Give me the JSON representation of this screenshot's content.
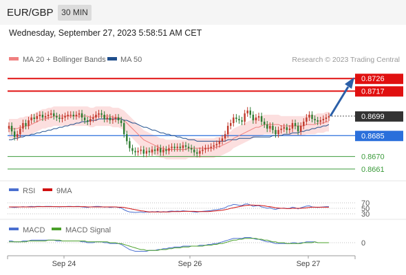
{
  "header": {
    "symbol": "EUR/GBP",
    "timeframe": "30 MIN"
  },
  "datetime": "Wednesday, September 27, 2023 5:58:51 AM CET",
  "legend": {
    "ma20": "MA 20 + Bollinger Bands",
    "ma50": "MA 50",
    "copyright": "Research © 2023 Trading Central",
    "rsi": "RSI",
    "rsi_ma": "9MA",
    "macd": "MACD",
    "macd_signal": "MACD Signal"
  },
  "colors": {
    "ma20": "#f08080",
    "ma50": "#1f4e8c",
    "resistance": "#e01010",
    "pivot": "#2a6fdb",
    "support": "#3a9a3a",
    "current": "#333333",
    "bullish": "#c0392b",
    "bearish": "#2e7d32",
    "rsi": "#4a6fd0",
    "rsi_ma": "#d01010",
    "macd": "#4a6fd0",
    "macd_signal": "#4aa02a"
  },
  "chart_data": [
    {
      "type": "line",
      "title": "",
      "x_labels": [
        "Sep 24",
        "Sep 26",
        "Sep 27"
      ],
      "ylim": [
        0.8655,
        0.8735
      ],
      "price_levels": [
        {
          "value": 0.8726,
          "label": "0.8726",
          "kind": "resistance"
        },
        {
          "value": 0.8717,
          "label": "0.8717",
          "kind": "resistance"
        },
        {
          "value": 0.8699,
          "label": "0.8699",
          "kind": "current"
        },
        {
          "value": 0.8685,
          "label": "0.8685",
          "kind": "pivot"
        },
        {
          "value": 0.867,
          "label": "0.8670",
          "kind": "support"
        },
        {
          "value": 0.8661,
          "label": "0.8661",
          "kind": "support"
        }
      ],
      "close": [
        0.8692,
        0.8688,
        0.8684,
        0.8686,
        0.869,
        0.8694,
        0.8692,
        0.8696,
        0.8698,
        0.8697,
        0.8699,
        0.87,
        0.8698,
        0.8699,
        0.87,
        0.8701,
        0.8699,
        0.8698,
        0.8697,
        0.8698,
        0.8699,
        0.87,
        0.87,
        0.8699,
        0.87,
        0.8701,
        0.8698,
        0.8696,
        0.8695,
        0.8697,
        0.8698,
        0.87,
        0.8701,
        0.87,
        0.8697,
        0.8698,
        0.8696,
        0.8697,
        0.8698,
        0.8696,
        0.8694,
        0.8686,
        0.8681,
        0.8676,
        0.8674,
        0.8673,
        0.8674,
        0.8675,
        0.8672,
        0.8674,
        0.8673,
        0.8675,
        0.8674,
        0.8676,
        0.8673,
        0.8675,
        0.8674,
        0.8676,
        0.8677,
        0.8676,
        0.8677,
        0.8676,
        0.8678,
        0.8677,
        0.8676,
        0.8675,
        0.8673,
        0.8672,
        0.8674,
        0.8675,
        0.8676,
        0.8676,
        0.8677,
        0.8678,
        0.8679,
        0.8681,
        0.8683,
        0.8686,
        0.8692,
        0.8694,
        0.8698,
        0.8697,
        0.8696,
        0.8695,
        0.8701,
        0.8703,
        0.87,
        0.8696,
        0.8698,
        0.8699,
        0.8695,
        0.8693,
        0.869,
        0.8692,
        0.8689,
        0.8686,
        0.8689,
        0.869,
        0.8691,
        0.8689,
        0.869,
        0.8694,
        0.8692,
        0.8688,
        0.8692,
        0.8695,
        0.8698,
        0.87,
        0.8697,
        0.8696,
        0.8695,
        0.8696,
        0.8697,
        0.8698,
        0.8699
      ],
      "ma20": [
        0.869,
        0.869,
        0.869,
        0.869,
        0.8691,
        0.8691,
        0.8692,
        0.8692,
        0.8693,
        0.8694,
        0.8695,
        0.8696,
        0.8697,
        0.8697,
        0.8698,
        0.8698,
        0.8699,
        0.8699,
        0.8699,
        0.8699,
        0.8699,
        0.8699,
        0.8699,
        0.8699,
        0.8699,
        0.8699,
        0.8699,
        0.8699,
        0.8699,
        0.8698,
        0.8698,
        0.8699,
        0.8699,
        0.8699,
        0.8699,
        0.8699,
        0.8699,
        0.8698,
        0.8698,
        0.8698,
        0.8697,
        0.8696,
        0.8694,
        0.8692,
        0.869,
        0.8688,
        0.8686,
        0.8684,
        0.8682,
        0.8681,
        0.868,
        0.8679,
        0.8678,
        0.8677,
        0.8676,
        0.8676,
        0.8675,
        0.8675,
        0.8675,
        0.8675,
        0.8675,
        0.8675,
        0.8675,
        0.8675,
        0.8676,
        0.8676,
        0.8676,
        0.8676,
        0.8676,
        0.8676,
        0.8676,
        0.8676,
        0.8676,
        0.8676,
        0.8677,
        0.8677,
        0.8678,
        0.8679,
        0.868,
        0.8681,
        0.8683,
        0.8684,
        0.8685,
        0.8686,
        0.8687,
        0.8688,
        0.8689,
        0.869,
        0.8691,
        0.8691,
        0.8692,
        0.8693,
        0.8693,
        0.8693,
        0.8693,
        0.8693,
        0.8693,
        0.8692,
        0.8692,
        0.8692,
        0.8692,
        0.8692,
        0.8692,
        0.8692,
        0.8692,
        0.8692,
        0.8693,
        0.8693,
        0.8693,
        0.8693,
        0.8694,
        0.8694,
        0.8694,
        0.8695,
        0.8695
      ],
      "ma50": [
        0.8682,
        0.8682,
        0.8683,
        0.8683,
        0.8684,
        0.8684,
        0.8685,
        0.8685,
        0.8686,
        0.8686,
        0.8687,
        0.8687,
        0.8688,
        0.8688,
        0.8689,
        0.8689,
        0.869,
        0.869,
        0.8691,
        0.8691,
        0.8692,
        0.8692,
        0.8693,
        0.8693,
        0.8694,
        0.8694,
        0.8695,
        0.8695,
        0.8695,
        0.8696,
        0.8696,
        0.8696,
        0.8697,
        0.8697,
        0.8697,
        0.8697,
        0.8697,
        0.8697,
        0.8697,
        0.8697,
        0.8697,
        0.8696,
        0.8696,
        0.8695,
        0.8694,
        0.8694,
        0.8693,
        0.8692,
        0.8691,
        0.8691,
        0.869,
        0.8689,
        0.8689,
        0.8688,
        0.8687,
        0.8687,
        0.8686,
        0.8686,
        0.8685,
        0.8685,
        0.8684,
        0.8684,
        0.8683,
        0.8683,
        0.8682,
        0.8682,
        0.8682,
        0.8681,
        0.8681,
        0.8681,
        0.8681,
        0.8681,
        0.8681,
        0.8681,
        0.8681,
        0.8681,
        0.8681,
        0.8681,
        0.8682,
        0.8682,
        0.8682,
        0.8682,
        0.8683,
        0.8683,
        0.8683,
        0.8683,
        0.8683,
        0.8684,
        0.8684,
        0.8684,
        0.8684,
        0.8684,
        0.8684,
        0.8684,
        0.8685,
        0.8685,
        0.8685,
        0.8685,
        0.8686,
        0.8686,
        0.8686,
        0.8687,
        0.8687,
        0.8687,
        0.8688,
        0.8688,
        0.8689,
        0.8689,
        0.869,
        0.869,
        0.8691,
        0.8691,
        0.8692,
        0.8692,
        0.8693
      ],
      "bb_width": 0.0007,
      "projection": {
        "from": 0.8699,
        "to": 0.8726
      }
    },
    {
      "type": "line",
      "title": "RSI",
      "levels": [
        {
          "value": 70,
          "label": "70"
        },
        {
          "value": 50,
          "label": "50"
        },
        {
          "value": 30,
          "label": "30"
        }
      ],
      "ylim": [
        20,
        80
      ],
      "rsi": [
        55,
        54,
        53,
        54,
        55,
        56,
        55,
        56,
        57,
        56,
        57,
        57,
        56,
        57,
        57,
        57,
        56,
        56,
        55,
        56,
        56,
        57,
        57,
        56,
        57,
        57,
        55,
        54,
        53,
        55,
        56,
        57,
        57,
        56,
        54,
        55,
        53,
        54,
        55,
        53,
        51,
        45,
        40,
        37,
        36,
        35,
        36,
        37,
        35,
        37,
        36,
        38,
        37,
        39,
        36,
        38,
        37,
        39,
        40,
        39,
        40,
        39,
        41,
        40,
        39,
        38,
        37,
        36,
        38,
        39,
        40,
        41,
        42,
        44,
        45,
        47,
        49,
        52,
        58,
        60,
        64,
        63,
        61,
        60,
        65,
        66,
        62,
        57,
        59,
        60,
        55,
        53,
        50,
        52,
        48,
        46,
        49,
        50,
        51,
        49,
        50,
        54,
        52,
        48,
        52,
        55,
        58,
        59,
        55,
        54,
        53,
        54,
        55,
        56,
        56
      ],
      "rsi_ma": [
        55,
        55,
        55,
        55,
        55,
        55,
        55,
        55,
        55,
        55,
        56,
        56,
        56,
        56,
        56,
        56,
        56,
        56,
        56,
        56,
        56,
        56,
        56,
        56,
        56,
        56,
        56,
        56,
        55,
        55,
        55,
        55,
        55,
        55,
        55,
        55,
        55,
        55,
        55,
        54,
        54,
        53,
        51,
        49,
        47,
        45,
        43,
        41,
        40,
        38,
        37,
        37,
        37,
        37,
        37,
        37,
        37,
        37,
        38,
        38,
        38,
        38,
        39,
        39,
        39,
        39,
        39,
        38,
        38,
        38,
        38,
        38,
        39,
        40,
        41,
        42,
        43,
        45,
        47,
        50,
        52,
        54,
        56,
        58,
        60,
        61,
        62,
        62,
        61,
        61,
        60,
        59,
        57,
        56,
        54,
        52,
        51,
        50,
        50,
        49,
        49,
        50,
        50,
        50,
        50,
        51,
        52,
        53,
        54,
        54,
        54,
        54,
        54,
        54,
        54
      ]
    },
    {
      "type": "line",
      "title": "MACD",
      "levels": [
        {
          "value": 0,
          "label": "0"
        }
      ],
      "ylim": [
        -0.0012,
        0.0008
      ],
      "macd": [
        0.0002,
        0.0002,
        0.0001,
        0.0001,
        0.0001,
        0.0002,
        0.0002,
        0.0002,
        0.0003,
        0.0003,
        0.0003,
        0.0003,
        0.0003,
        0.0003,
        0.0003,
        0.0003,
        0.0003,
        0.0002,
        0.0002,
        0.0002,
        0.0002,
        0.0002,
        0.0002,
        0.0002,
        0.0002,
        0.0002,
        0.0001,
        0.0001,
        0.0,
        0.0,
        0.0,
        0.0001,
        0.0001,
        0.0001,
        0.0,
        0.0,
        -0.0001,
        -0.0001,
        -0.0001,
        -0.0001,
        -0.0002,
        -0.0004,
        -0.0006,
        -0.0008,
        -0.0009,
        -0.001,
        -0.001,
        -0.001,
        -0.001,
        -0.001,
        -0.0009,
        -0.0009,
        -0.0009,
        -0.0008,
        -0.0008,
        -0.0007,
        -0.0007,
        -0.0006,
        -0.0006,
        -0.0005,
        -0.0005,
        -0.0005,
        -0.0004,
        -0.0004,
        -0.0004,
        -0.0004,
        -0.0004,
        -0.0004,
        -0.0003,
        -0.0003,
        -0.0003,
        -0.0002,
        -0.0002,
        -0.0001,
        -0.0001,
        0.0,
        0.0001,
        0.0002,
        0.0003,
        0.0004,
        0.0005,
        0.0005,
        0.0005,
        0.0005,
        0.0006,
        0.0006,
        0.0006,
        0.0005,
        0.0004,
        0.0004,
        0.0003,
        0.0002,
        0.0001,
        0.0001,
        0.0,
        -0.0001,
        -0.0001,
        -0.0001,
        -0.0001,
        -0.0001,
        -0.0001,
        0.0,
        0.0,
        -0.0001,
        0.0,
        0.0,
        0.0001,
        0.0001,
        0.0001,
        0.0001,
        0.0,
        0.0,
        0.0,
        0.0,
        0.0
      ],
      "signal": [
        0.0001,
        0.0001,
        0.0001,
        0.0001,
        0.0001,
        0.0001,
        0.0001,
        0.0002,
        0.0002,
        0.0002,
        0.0002,
        0.0002,
        0.0002,
        0.0002,
        0.0003,
        0.0003,
        0.0003,
        0.0003,
        0.0003,
        0.0002,
        0.0002,
        0.0002,
        0.0002,
        0.0002,
        0.0002,
        0.0002,
        0.0002,
        0.0002,
        0.0001,
        0.0001,
        0.0001,
        0.0001,
        0.0001,
        0.0001,
        0.0001,
        0.0001,
        0.0,
        0.0,
        0.0,
        -0.0001,
        -0.0001,
        -0.0002,
        -0.0003,
        -0.0004,
        -0.0005,
        -0.0006,
        -0.0007,
        -0.0008,
        -0.0008,
        -0.0009,
        -0.0009,
        -0.0009,
        -0.0009,
        -0.0009,
        -0.0008,
        -0.0008,
        -0.0008,
        -0.0007,
        -0.0007,
        -0.0006,
        -0.0006,
        -0.0006,
        -0.0005,
        -0.0005,
        -0.0005,
        -0.0004,
        -0.0004,
        -0.0004,
        -0.0004,
        -0.0004,
        -0.0003,
        -0.0003,
        -0.0003,
        -0.0002,
        -0.0002,
        -0.0001,
        -0.0001,
        0.0,
        0.0001,
        0.0002,
        0.0003,
        0.0003,
        0.0004,
        0.0004,
        0.0005,
        0.0005,
        0.0005,
        0.0005,
        0.0005,
        0.0004,
        0.0004,
        0.0003,
        0.0003,
        0.0002,
        0.0001,
        0.0001,
        0.0,
        0.0,
        0.0,
        -0.0001,
        -0.0001,
        -0.0001,
        -0.0001,
        -0.0001,
        -0.0001,
        0.0,
        0.0,
        0.0,
        0.0,
        0.0001,
        0.0,
        0.0,
        0.0,
        0.0,
        0.0
      ]
    }
  ]
}
